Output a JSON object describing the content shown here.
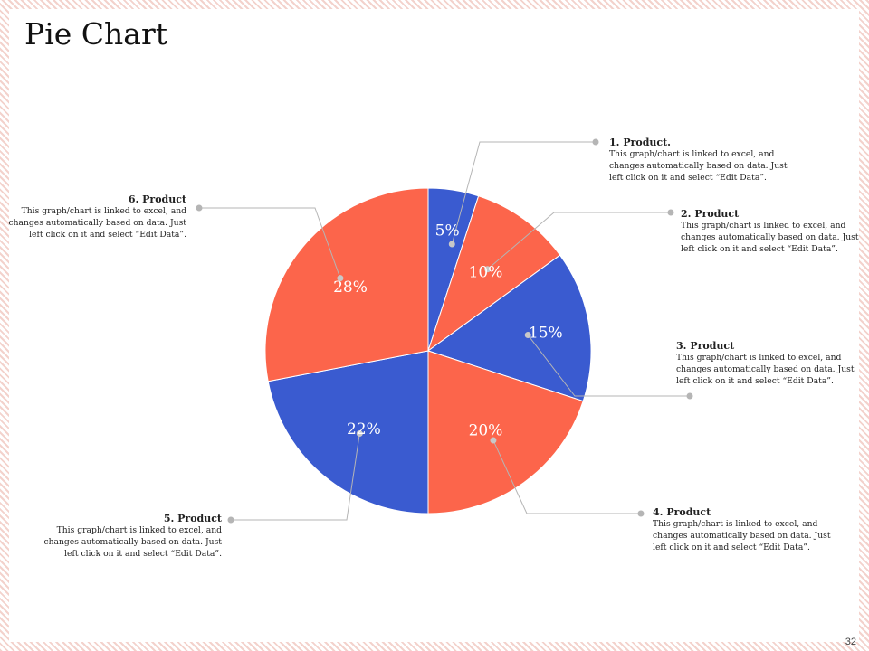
{
  "slide": {
    "title": "Pie Chart",
    "page_number": "32"
  },
  "chart_data": {
    "type": "pie",
    "slices": [
      {
        "label": "1. Product.",
        "value": 5,
        "display": "5%",
        "color": "#3a5bd0"
      },
      {
        "label": "2. Product",
        "value": 10,
        "display": "10%",
        "color": "#fc654b"
      },
      {
        "label": "3. Product",
        "value": 15,
        "display": "15%",
        "color": "#3a5bd0"
      },
      {
        "label": "4. Product",
        "value": 20,
        "display": "20%",
        "color": "#fc654b"
      },
      {
        "label": "5. Product",
        "value": 22,
        "display": "22%",
        "color": "#3a5bd0"
      },
      {
        "label": "6. Product",
        "value": 28,
        "display": "28%",
        "color": "#fc654b"
      }
    ],
    "start": "12 o'clock, clockwise"
  },
  "callouts": [
    {
      "title": "1. Product.",
      "desc": "This graph/chart is linked to excel, and changes automatically based on data. Just left click on it and select “Edit Data”."
    },
    {
      "title": "2. Product",
      "desc": "This graph/chart is linked to excel, and changes automatically based on data. Just left click on it and select “Edit Data”."
    },
    {
      "title": "3. Product",
      "desc": "This graph/chart is linked to excel, and changes automatically based on data. Just left click on it and select “Edit Data”."
    },
    {
      "title": "4. Product",
      "desc": "This graph/chart is linked to excel, and changes automatically based on data. Just left click on it and select “Edit Data”."
    },
    {
      "title": "5. Product",
      "desc": "This graph/chart is linked to excel, and changes automatically based on data. Just left click on it and select “Edit Data”."
    },
    {
      "title": "6. Product",
      "desc": "This graph/chart is linked to excel, and changes automatically based on data. Just left click on it and select “Edit Data”."
    }
  ]
}
